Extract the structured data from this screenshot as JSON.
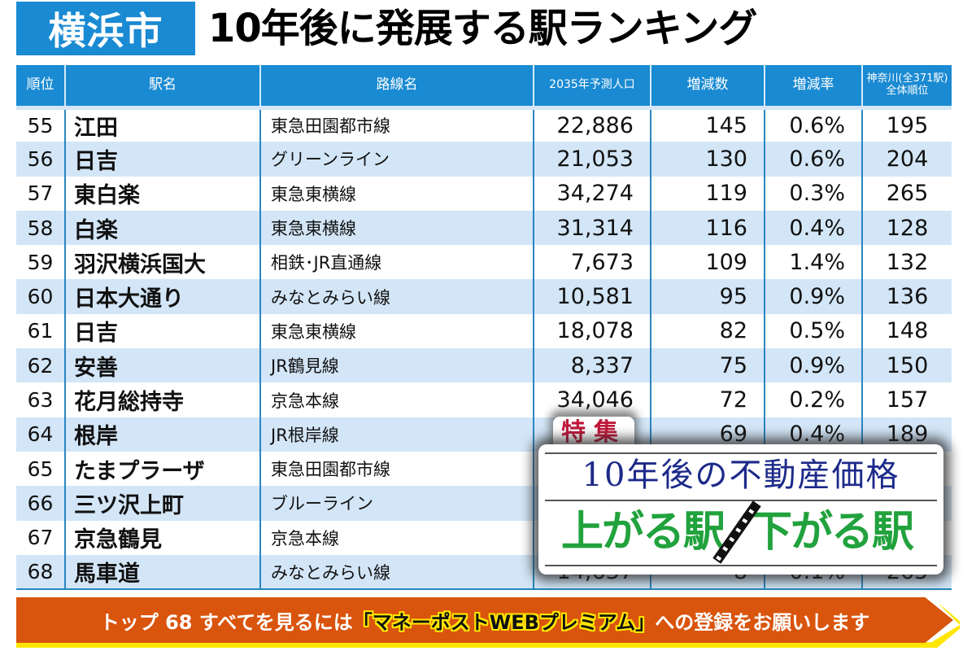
{
  "header": {
    "city_badge": "横浜市",
    "title": "10年後に発展する駅ランキング"
  },
  "table": {
    "columns": [
      "順位",
      "駅名",
      "路線名",
      "2035年予測人口",
      "増減数",
      "増減率",
      "神奈川(全371駅)\n全体順位"
    ],
    "column_last_line1": "神奈川(全371駅)",
    "column_last_line2": "全体順位",
    "rows": [
      {
        "rank": "55",
        "station": "江田",
        "line": "東急田園都市線",
        "population": "22,886",
        "change": "145",
        "rate": "0.6%",
        "overall": "195"
      },
      {
        "rank": "56",
        "station": "日吉",
        "line": "グリーンライン",
        "population": "21,053",
        "change": "130",
        "rate": "0.6%",
        "overall": "204"
      },
      {
        "rank": "57",
        "station": "東白楽",
        "line": "東急東横線",
        "population": "34,274",
        "change": "119",
        "rate": "0.3%",
        "overall": "265"
      },
      {
        "rank": "58",
        "station": "白楽",
        "line": "東急東横線",
        "population": "31,314",
        "change": "116",
        "rate": "0.4%",
        "overall": "128"
      },
      {
        "rank": "59",
        "station": "羽沢横浜国大",
        "line": "相鉄･JR直通線",
        "population": "7,673",
        "change": "109",
        "rate": "1.4%",
        "overall": "132"
      },
      {
        "rank": "60",
        "station": "日本大通り",
        "line": "みなとみらい線",
        "population": "10,581",
        "change": "95",
        "rate": "0.9%",
        "overall": "136"
      },
      {
        "rank": "61",
        "station": "日吉",
        "line": "東急東横線",
        "population": "18,078",
        "change": "82",
        "rate": "0.5%",
        "overall": "148"
      },
      {
        "rank": "62",
        "station": "安善",
        "line": "JR鶴見線",
        "population": "8,337",
        "change": "75",
        "rate": "0.9%",
        "overall": "150"
      },
      {
        "rank": "63",
        "station": "花月総持寺",
        "line": "京急本線",
        "population": "34,046",
        "change": "72",
        "rate": "0.2%",
        "overall": "157"
      },
      {
        "rank": "64",
        "station": "根岸",
        "line": "JR根岸線",
        "population": "",
        "change": "69",
        "rate": "0.4%",
        "overall": "189"
      },
      {
        "rank": "65",
        "station": "たまプラーザ",
        "line": "東急田園都市線",
        "population": "",
        "change": "",
        "rate": "",
        "overall": ""
      },
      {
        "rank": "66",
        "station": "三ツ沢上町",
        "line": "ブルーライン",
        "population": "",
        "change": "",
        "rate": "",
        "overall": ""
      },
      {
        "rank": "67",
        "station": "京急鶴見",
        "line": "京急本線",
        "population": "",
        "change": "",
        "rate": "",
        "overall": ""
      },
      {
        "rank": "68",
        "station": "馬車道",
        "line": "みなとみらい線",
        "population": "14,637",
        "change": "8",
        "rate": "0.1%",
        "overall": "265"
      }
    ]
  },
  "overlay": {
    "tag": "特集",
    "subtitle": "10年後の不動産価格",
    "main_left": "上がる駅",
    "main_right": "下がる駅",
    "slash_icon": "railway-track-slash"
  },
  "banner": {
    "prefix": "トップ 68 すべてを見るには",
    "highlight": "「マネーポストWEBプレミアム」",
    "suffix": "への登録をお願いします"
  },
  "colors": {
    "header_blue": "#1a8ad2",
    "row_alt": "#d3e6f7",
    "banner_orange": "#d9540c",
    "banner_yellow": "#ffe600",
    "overlay_green": "#21a23d",
    "overlay_navy": "#1d2a8a",
    "overlay_red": "#c0183a"
  }
}
